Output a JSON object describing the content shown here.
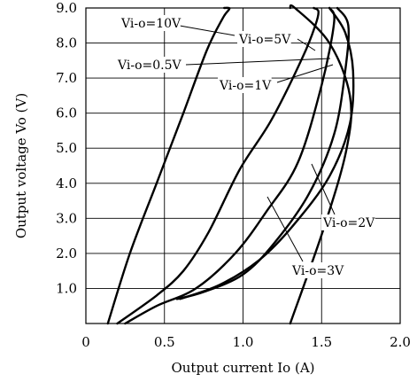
{
  "chart_data": {
    "type": "line",
    "title": "",
    "xlabel": "Output current Io (A)",
    "ylabel": "Output voltage Vo (V)",
    "xlim": [
      0,
      2.0
    ],
    "ylim": [
      0,
      9.0
    ],
    "xticks": [
      {
        "value": 0,
        "label": "0"
      },
      {
        "value": 0.5,
        "label": "0.5"
      },
      {
        "value": 1.0,
        "label": "1.0"
      },
      {
        "value": 1.5,
        "label": "1.5"
      },
      {
        "value": 2.0,
        "label": "2.0"
      }
    ],
    "yticks": [
      {
        "value": 1.0,
        "label": "1.0"
      },
      {
        "value": 2.0,
        "label": "2.0"
      },
      {
        "value": 3.0,
        "label": "3.0"
      },
      {
        "value": 4.0,
        "label": "4.0"
      },
      {
        "value": 5.0,
        "label": "5.0"
      },
      {
        "value": 6.0,
        "label": "6.0"
      },
      {
        "value": 7.0,
        "label": "7.0"
      },
      {
        "value": 8.0,
        "label": "8.0"
      },
      {
        "value": 9.0,
        "label": "9.0"
      }
    ],
    "grid": true,
    "line_color": "#000000",
    "series": [
      {
        "name": "Vi-o=10V",
        "x": [
          0.14,
          0.28,
          0.45,
          0.62,
          0.77,
          0.87,
          0.91,
          0.91,
          0.88
        ],
        "y": [
          0.0,
          2.0,
          4.0,
          6.0,
          7.8,
          8.7,
          8.95,
          9.0,
          9.0
        ]
      },
      {
        "name": "Vi-o=5V",
        "x": [
          0.2,
          0.45,
          0.62,
          0.78,
          0.98,
          1.18,
          1.38,
          1.46,
          1.48,
          1.45
        ],
        "y": [
          0.0,
          0.8,
          1.5,
          2.6,
          4.4,
          5.8,
          7.6,
          8.5,
          8.9,
          9.0
        ]
      },
      {
        "name": "Vi-o=3V",
        "x": [
          0.25,
          0.45,
          0.7,
          0.95,
          1.15,
          1.35,
          1.5,
          1.58,
          1.55
        ],
        "y": [
          0.0,
          0.5,
          1.0,
          2.0,
          3.2,
          4.6,
          6.8,
          8.6,
          9.0
        ]
      },
      {
        "name": "Vi-o=2V",
        "x": [
          0.58,
          0.75,
          1.0,
          1.2,
          1.42,
          1.58,
          1.65,
          1.67,
          1.6
        ],
        "y": [
          0.7,
          0.9,
          1.4,
          2.3,
          3.7,
          5.4,
          7.2,
          8.5,
          9.0
        ]
      },
      {
        "name": "Vi-o=1V",
        "x": [
          0.6,
          0.85,
          1.1,
          1.32,
          1.55,
          1.68,
          1.7,
          1.65,
          1.55
        ],
        "y": [
          0.7,
          1.1,
          1.8,
          2.8,
          4.2,
          5.7,
          7.2,
          8.3,
          9.0
        ]
      },
      {
        "name": "Vi-o=0.5V",
        "x": [
          1.3,
          1.52,
          1.66,
          1.68,
          1.55,
          1.33,
          1.3
        ],
        "y": [
          0.0,
          2.8,
          5.0,
          6.5,
          8.0,
          9.0,
          9.0
        ]
      }
    ],
    "annotations": [
      {
        "text": "Vi-o=10V",
        "series": "Vi-o=10V"
      },
      {
        "text": "Vi-o=5V",
        "series": "Vi-o=5V"
      },
      {
        "text": "Vi-o=0.5V",
        "series": "Vi-o=0.5V"
      },
      {
        "text": "Vi-o=1V",
        "series": "Vi-o=1V"
      },
      {
        "text": "Vi-o=2V",
        "series": "Vi-o=2V"
      },
      {
        "text": "Vi-o=3V",
        "series": "Vi-o=3V"
      }
    ]
  }
}
